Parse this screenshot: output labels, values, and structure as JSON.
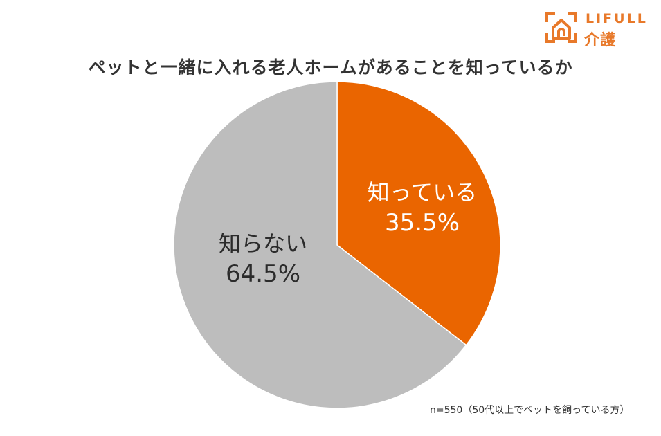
{
  "brand": {
    "wordmark": "LIFULL",
    "sub": "介護",
    "color": "#e8792a"
  },
  "title": "ペットと一緒に入れる老人ホームがあることを知っているか",
  "note": "n=550（50代以上でペットを飼っている方）",
  "colors": {
    "known": "#ea6500",
    "unknown": "#bdbdbd",
    "separator": "#ffffff"
  },
  "chart_data": {
    "type": "pie",
    "title": "ペットと一緒に入れる老人ホームがあることを知っているか",
    "categories": [
      "知っている",
      "知らない"
    ],
    "values": [
      35.5,
      64.5
    ],
    "unit": "%",
    "start_angle": "12 o'clock, clockwise",
    "sample_note": "n=550（50代以上でペットを飼っている方）",
    "slices": [
      {
        "label": "知っている",
        "value": 35.5,
        "display": "35.5%",
        "color": "#ea6500"
      },
      {
        "label": "知らない",
        "value": 64.5,
        "display": "64.5%",
        "color": "#bdbdbd"
      }
    ]
  }
}
